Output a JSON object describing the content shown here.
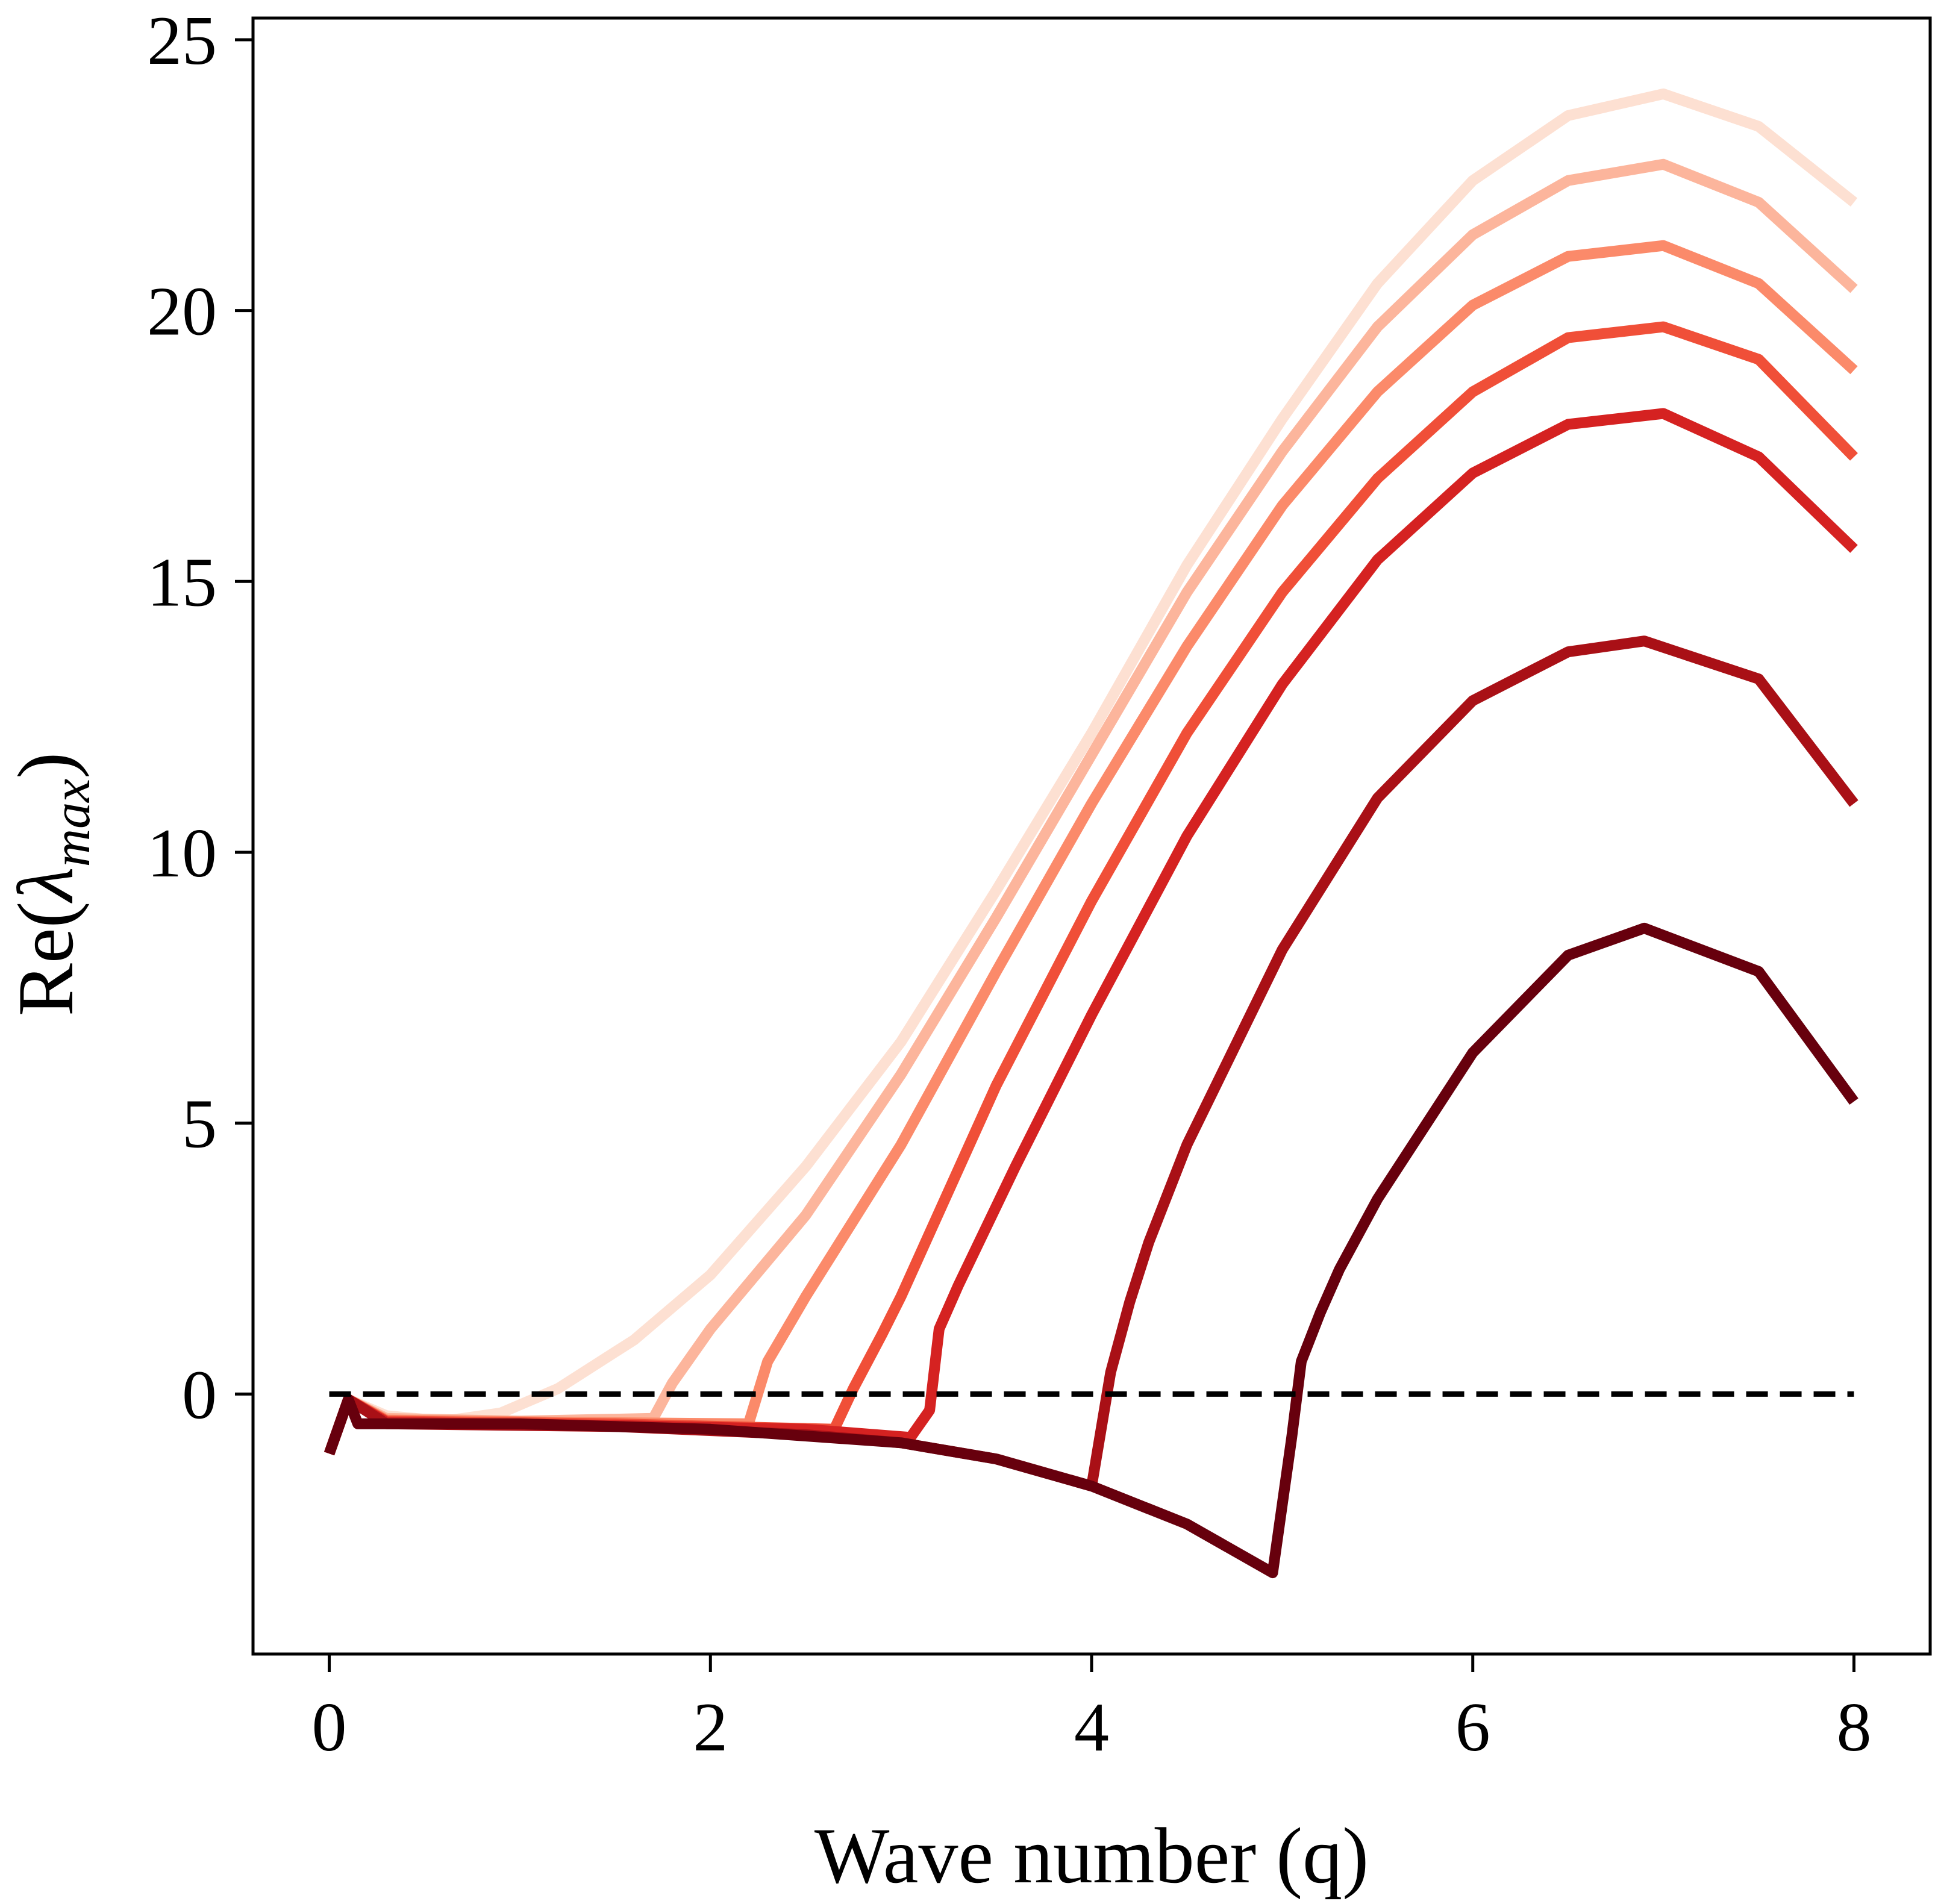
{
  "chart_data": {
    "type": "line",
    "title": "",
    "xlabel": "Wave number (q)",
    "ylabel": "Re(λmax)",
    "ylabel_parts": {
      "prefix": "Re(",
      "symbol": "λ",
      "subscript": "max",
      "suffix": ")"
    },
    "xlim": [
      -0.4,
      8.4
    ],
    "ylim": [
      -4.8,
      25.4
    ],
    "xticks": [
      0,
      2,
      4,
      6,
      8
    ],
    "yticks": [
      0,
      5,
      10,
      15,
      20,
      25
    ],
    "grid": false,
    "legend": "none",
    "reference_line": {
      "y": 0,
      "style": "dashed",
      "color": "#000000"
    },
    "series": [
      {
        "color": "#fde0d2",
        "points": [
          [
            0.0,
            -1.1
          ],
          [
            0.1,
            -0.1
          ],
          [
            0.3,
            -0.4
          ],
          [
            0.6,
            -0.5
          ],
          [
            0.9,
            -0.35
          ],
          [
            1.2,
            0.1
          ],
          [
            1.6,
            1.0
          ],
          [
            2.0,
            2.2
          ],
          [
            2.5,
            4.2
          ],
          [
            3.0,
            6.5
          ],
          [
            3.5,
            9.3
          ],
          [
            4.0,
            12.2
          ],
          [
            4.5,
            15.3
          ],
          [
            5.0,
            18.0
          ],
          [
            5.5,
            20.5
          ],
          [
            6.0,
            22.4
          ],
          [
            6.5,
            23.6
          ],
          [
            7.0,
            24.0
          ],
          [
            7.5,
            23.4
          ],
          [
            8.0,
            22.0
          ]
        ]
      },
      {
        "color": "#fcb59c",
        "points": [
          [
            0.0,
            -1.1
          ],
          [
            0.1,
            -0.1
          ],
          [
            0.3,
            -0.45
          ],
          [
            1.0,
            -0.5
          ],
          [
            1.7,
            -0.45
          ],
          [
            1.8,
            0.2
          ],
          [
            2.0,
            1.2
          ],
          [
            2.5,
            3.3
          ],
          [
            3.0,
            5.9
          ],
          [
            3.5,
            8.8
          ],
          [
            4.0,
            11.8
          ],
          [
            4.5,
            14.8
          ],
          [
            5.0,
            17.4
          ],
          [
            5.5,
            19.7
          ],
          [
            6.0,
            21.4
          ],
          [
            6.5,
            22.4
          ],
          [
            7.0,
            22.7
          ],
          [
            7.5,
            22.0
          ],
          [
            8.0,
            20.4
          ]
        ]
      },
      {
        "color": "#fb8a6a",
        "points": [
          [
            0.0,
            -1.1
          ],
          [
            0.1,
            -0.1
          ],
          [
            0.3,
            -0.48
          ],
          [
            1.2,
            -0.52
          ],
          [
            2.2,
            -0.55
          ],
          [
            2.3,
            0.6
          ],
          [
            2.5,
            1.8
          ],
          [
            3.0,
            4.6
          ],
          [
            3.5,
            7.8
          ],
          [
            4.0,
            10.9
          ],
          [
            4.5,
            13.8
          ],
          [
            5.0,
            16.4
          ],
          [
            5.5,
            18.5
          ],
          [
            6.0,
            20.1
          ],
          [
            6.5,
            21.0
          ],
          [
            7.0,
            21.2
          ],
          [
            7.5,
            20.5
          ],
          [
            8.0,
            18.9
          ]
        ]
      },
      {
        "color": "#f04f38",
        "points": [
          [
            0.0,
            -1.1
          ],
          [
            0.1,
            -0.1
          ],
          [
            0.3,
            -0.5
          ],
          [
            1.5,
            -0.55
          ],
          [
            2.65,
            -0.65
          ],
          [
            2.75,
            0.1
          ],
          [
            2.9,
            1.1
          ],
          [
            3.0,
            1.8
          ],
          [
            3.5,
            5.7
          ],
          [
            4.0,
            9.1
          ],
          [
            4.5,
            12.2
          ],
          [
            5.0,
            14.8
          ],
          [
            5.5,
            16.9
          ],
          [
            6.0,
            18.5
          ],
          [
            6.5,
            19.5
          ],
          [
            7.0,
            19.7
          ],
          [
            7.5,
            19.1
          ],
          [
            8.0,
            17.3
          ]
        ]
      },
      {
        "color": "#d52221",
        "points": [
          [
            0.0,
            -1.1
          ],
          [
            0.1,
            -0.1
          ],
          [
            0.3,
            -0.52
          ],
          [
            1.5,
            -0.58
          ],
          [
            2.5,
            -0.65
          ],
          [
            3.05,
            -0.8
          ],
          [
            3.15,
            -0.3
          ],
          [
            3.2,
            1.2
          ],
          [
            3.3,
            2.0
          ],
          [
            3.6,
            4.2
          ],
          [
            4.0,
            7.0
          ],
          [
            4.5,
            10.3
          ],
          [
            5.0,
            13.1
          ],
          [
            5.5,
            15.4
          ],
          [
            6.0,
            17.0
          ],
          [
            6.5,
            17.9
          ],
          [
            7.0,
            18.1
          ],
          [
            7.5,
            17.3
          ],
          [
            8.0,
            15.6
          ]
        ]
      },
      {
        "color": "#a91016",
        "points": [
          [
            0.0,
            -1.1
          ],
          [
            0.1,
            -0.1
          ],
          [
            0.3,
            -0.55
          ],
          [
            1.5,
            -0.6
          ],
          [
            2.5,
            -0.75
          ],
          [
            3.0,
            -0.9
          ],
          [
            3.5,
            -1.2
          ],
          [
            4.0,
            -1.7
          ],
          [
            4.1,
            0.4
          ],
          [
            4.2,
            1.7
          ],
          [
            4.3,
            2.8
          ],
          [
            4.5,
            4.6
          ],
          [
            5.0,
            8.2
          ],
          [
            5.5,
            11.0
          ],
          [
            6.0,
            12.8
          ],
          [
            6.5,
            13.7
          ],
          [
            6.9,
            13.9
          ],
          [
            7.5,
            13.2
          ],
          [
            8.0,
            10.9
          ]
        ]
      },
      {
        "color": "#67000d",
        "points": [
          [
            0.0,
            -1.1
          ],
          [
            0.1,
            -0.1
          ],
          [
            0.15,
            -0.55
          ],
          [
            1.0,
            -0.55
          ],
          [
            2.0,
            -0.65
          ],
          [
            3.0,
            -0.9
          ],
          [
            3.5,
            -1.2
          ],
          [
            4.0,
            -1.7
          ],
          [
            4.5,
            -2.4
          ],
          [
            4.95,
            -3.3
          ],
          [
            5.05,
            -0.8
          ],
          [
            5.1,
            0.6
          ],
          [
            5.2,
            1.5
          ],
          [
            5.3,
            2.3
          ],
          [
            5.5,
            3.6
          ],
          [
            6.0,
            6.3
          ],
          [
            6.5,
            8.1
          ],
          [
            6.9,
            8.6
          ],
          [
            7.5,
            7.8
          ],
          [
            8.0,
            5.4
          ]
        ]
      }
    ]
  }
}
